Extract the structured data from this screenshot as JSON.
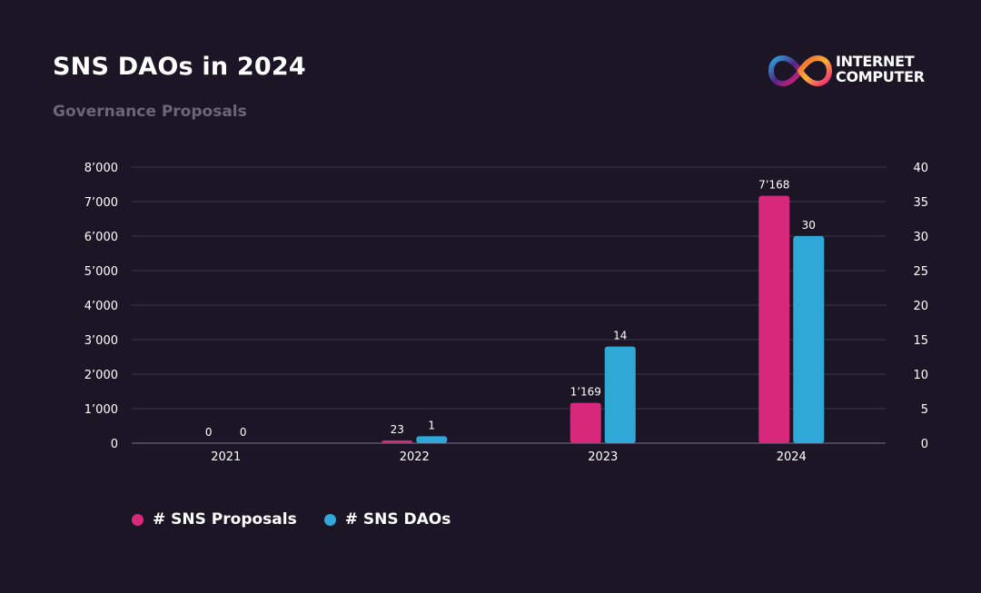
{
  "header": {
    "title": "SNS DAOs in 2024",
    "subtitle": "Governance Proposals"
  },
  "logo": {
    "icon": "infinity-icon",
    "line1": "INTERNET",
    "line2": "COMPUTER"
  },
  "colors": {
    "background": "#1b1526",
    "proposals": "#d8287c",
    "daos": "#2fa8d8",
    "grid": "#3e3850",
    "text_muted": "#6b6676"
  },
  "chart_data": {
    "type": "bar",
    "title": "SNS DAOs in 2024",
    "subtitle": "Governance Proposals",
    "categories": [
      "2021",
      "2022",
      "2023",
      "2024"
    ],
    "series": [
      {
        "name": "# SNS Proposals",
        "axis": "left",
        "values": [
          0,
          23,
          1169,
          7168
        ],
        "labels": [
          "0",
          "23",
          "1’169",
          "7’168"
        ]
      },
      {
        "name": "# SNS DAOs",
        "axis": "right",
        "values": [
          0,
          1,
          14,
          30
        ],
        "labels": [
          "0",
          "1",
          "14",
          "30"
        ]
      }
    ],
    "y_left": {
      "range": [
        0,
        8000
      ],
      "ticks": [
        0,
        1000,
        2000,
        3000,
        4000,
        5000,
        6000,
        7000,
        8000
      ],
      "tick_labels": [
        "0",
        "1’000",
        "2’000",
        "3’000",
        "4’000",
        "5’000",
        "6’000",
        "7’000",
        "8’000"
      ]
    },
    "y_right": {
      "range": [
        0,
        40
      ],
      "ticks": [
        0,
        5,
        10,
        15,
        20,
        25,
        30,
        35,
        40
      ],
      "tick_labels": [
        "0",
        "5",
        "10",
        "15",
        "20",
        "25",
        "30",
        "35",
        "40"
      ]
    },
    "grid": true,
    "legend_position": "bottom-left"
  },
  "legend": [
    {
      "label": "# SNS Proposals"
    },
    {
      "label": "# SNS DAOs"
    }
  ]
}
